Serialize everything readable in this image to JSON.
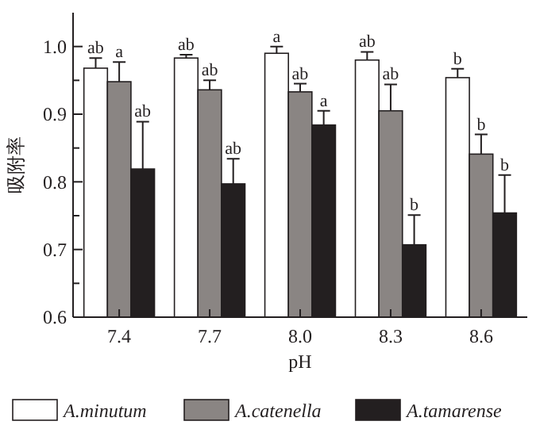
{
  "chart_data": {
    "type": "bar",
    "xlabel": "pH",
    "ylabel": "吸附率",
    "categories": [
      "7.4",
      "7.7",
      "8.0",
      "8.3",
      "8.6"
    ],
    "series": [
      {
        "name": "A.minutum",
        "color": "#ffffff",
        "values": [
          0.968,
          0.983,
          0.99,
          0.98,
          0.954
        ],
        "errors": [
          [
            0.968,
            0.983
          ],
          [
            0.983,
            0.988
          ],
          [
            0.99,
            1.0
          ],
          [
            0.98,
            0.992
          ],
          [
            0.954,
            0.967
          ]
        ]
      },
      {
        "name": "A.catenella",
        "color": "#8a8583",
        "values": [
          0.948,
          0.936,
          0.933,
          0.905,
          0.841
        ],
        "errors": [
          [
            0.948,
            0.977
          ],
          [
            0.936,
            0.95
          ],
          [
            0.933,
            0.945
          ],
          [
            0.905,
            0.944
          ],
          [
            0.841,
            0.87
          ]
        ]
      },
      {
        "name": "A.tamarense",
        "color": "#231f20",
        "values": [
          0.819,
          0.797,
          0.884,
          0.707,
          0.754
        ],
        "errors": [
          [
            0.819,
            0.889
          ],
          [
            0.797,
            0.834
          ],
          [
            0.884,
            0.905
          ],
          [
            0.707,
            0.751
          ],
          [
            0.754,
            0.81
          ]
        ]
      }
    ],
    "ylim": [
      0.6,
      1.05
    ],
    "yticks": [
      {
        "value": 0.6,
        "label": "0.6"
      },
      {
        "value": 0.65,
        "label": null
      },
      {
        "value": 0.7,
        "label": "0.7"
      },
      {
        "value": 0.75,
        "label": null
      },
      {
        "value": 0.8,
        "label": "0.8"
      },
      {
        "value": 0.85,
        "label": null
      },
      {
        "value": 0.9,
        "label": "0.9"
      },
      {
        "value": 0.95,
        "label": null
      },
      {
        "value": 1,
        "label": "1.0"
      }
    ],
    "legend": "bottom",
    "annotations": [
      "ab",
      "a",
      "ab",
      "ab",
      "ab",
      "ab",
      "a",
      "ab",
      "a",
      "ab",
      "ab",
      "b",
      "b",
      "b",
      "b"
    ]
  }
}
